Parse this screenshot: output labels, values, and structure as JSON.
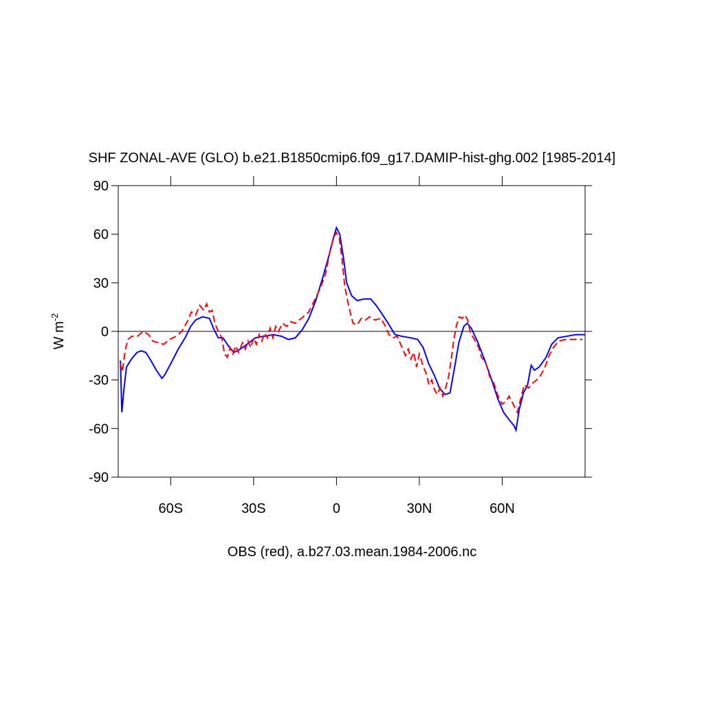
{
  "chart_data": {
    "type": "line",
    "title": "SHF ZONAL-AVE (GLO) b.e21.B1850cmip6.f09_g17.DAMIP-hist-ghg.002 [1985-2014]",
    "xlabel": "OBS (red), a.b27.03.mean.1984-2006.nc",
    "ylabel": "W m",
    "ylabel_sup": "-2",
    "xlim": [
      -79,
      90
    ],
    "ylim": [
      -90,
      90
    ],
    "xticks": [
      {
        "value": -60,
        "label": "60S"
      },
      {
        "value": -30,
        "label": "30S"
      },
      0,
      {
        "value": 30,
        "label": "30N"
      },
      {
        "value": 60,
        "label": "60N"
      }
    ],
    "yticks": [
      -90,
      -60,
      -30,
      0,
      30,
      60,
      90
    ],
    "reference_line": 0,
    "series": [
      {
        "color": "#0000ff",
        "style": "solid",
        "x": [
          -78.2,
          -77.7,
          -76.9,
          -76,
          -74.2,
          -72.2,
          -70.7,
          -69,
          -67.2,
          -65.2,
          -63.2,
          -62.2,
          -59.7,
          -57.3,
          -54.8,
          -52.8,
          -51,
          -48.5,
          -46,
          -44.3,
          -42.8,
          -41.1,
          -39.1,
          -37.1,
          -34.9,
          -32.4,
          -29.4,
          -26.1,
          -22.9,
          -19.9,
          -17.4,
          -14.9,
          -12.4,
          -10,
          -7.5,
          -5,
          -3,
          -1.2,
          0,
          1.2,
          2.5,
          3.7,
          5.5,
          7.5,
          10,
          12.4,
          14.4,
          16.4,
          18.7,
          21.2,
          23.6,
          26.9,
          29.4,
          31.4,
          33.4,
          35.4,
          37.3,
          39.3,
          41.1,
          42.8,
          44.3,
          46.1,
          47.3,
          48.8,
          51,
          53.5,
          56,
          58.5,
          60.5,
          62.7,
          64.2,
          65,
          66.2,
          67.7,
          69.2,
          70.5,
          71.7,
          73.4,
          75.9,
          77.9,
          80.2,
          83.4,
          86.6,
          89.9
        ],
        "values": [
          -18,
          -50,
          -35,
          -22,
          -17,
          -13,
          -12,
          -13,
          -18,
          -24,
          -29,
          -27,
          -19,
          -11,
          -4,
          3,
          7,
          9,
          8,
          1,
          -4,
          -4,
          -9,
          -13,
          -11,
          -8,
          -4,
          -3,
          -2,
          -3,
          -5,
          -4,
          1,
          8,
          19,
          33,
          45,
          57,
          64,
          60,
          46,
          30,
          22,
          19,
          20,
          20,
          16,
          11,
          5,
          -2,
          -3,
          -4,
          -5,
          -10,
          -20,
          -27,
          -35,
          -39,
          -38,
          -22,
          -7,
          3,
          5,
          2,
          -6,
          -17,
          -29,
          -42,
          -50,
          -55,
          -58,
          -61,
          -48,
          -38,
          -33,
          -21,
          -24,
          -22,
          -16,
          -8,
          -4,
          -3,
          -2,
          -2
        ]
      },
      {
        "color": "#ff0000",
        "style": "dashed",
        "x": [
          -78.2,
          -77.5,
          -76.5,
          -75.5,
          -74,
          -72,
          -70,
          -68,
          -66.5,
          -64.5,
          -62.5,
          -60.5,
          -58,
          -56,
          -54,
          -52.5,
          -51,
          -49.5,
          -48,
          -47,
          -46,
          -45,
          -44,
          -42.8,
          -41.5,
          -40.5,
          -39.5,
          -38.5,
          -37.5,
          -36.5,
          -35.5,
          -34,
          -33,
          -32,
          -31,
          -30,
          -29,
          -28,
          -27,
          -26,
          -25,
          -24,
          -23,
          -22,
          -21,
          -19.5,
          -18,
          -16.5,
          -15,
          -13.5,
          -12,
          -10,
          -8,
          -6,
          -4,
          -2.5,
          -1,
          0,
          1,
          2,
          3,
          4.5,
          6,
          7.5,
          9,
          10.5,
          12,
          14,
          16,
          17.5,
          19,
          20.5,
          22,
          23.5,
          25,
          26,
          27,
          28,
          29,
          30,
          31.5,
          32.5,
          33.5,
          34.5,
          35.5,
          36.5,
          37.5,
          38.5,
          39.5,
          40.5,
          41.5,
          42.5,
          43.5,
          44.5,
          45.5,
          46.5,
          47.5,
          48.5,
          50,
          51.5,
          52.5,
          54,
          55.5,
          57,
          58.5,
          60,
          61.5,
          62.5,
          64,
          65.5,
          66.5,
          68,
          69.5,
          71,
          72.5,
          74,
          75.5,
          77,
          78.5,
          80.5,
          83,
          86,
          89
        ],
        "values": [
          -20,
          -25,
          -12,
          -5,
          -3,
          -3,
          0,
          -2,
          -6,
          -7,
          -8,
          -5,
          -3,
          0,
          6,
          12,
          10,
          16,
          13,
          17,
          12,
          13,
          5,
          0,
          -4,
          -14,
          -16,
          -10,
          -14,
          -9,
          -13,
          -7,
          -11,
          -6,
          -10,
          -4,
          -8,
          -2,
          -6,
          -1,
          -4,
          2,
          -4,
          3,
          0,
          5,
          3,
          6,
          5,
          7,
          9,
          12,
          19,
          26,
          35,
          48,
          58,
          61,
          58,
          45,
          28,
          15,
          5,
          4,
          8,
          7,
          9,
          7,
          8,
          4,
          -2,
          -4,
          -3,
          -9,
          -15,
          -11,
          -17,
          -13,
          -22,
          -14,
          -22,
          -26,
          -33,
          -30,
          -36,
          -39,
          -35,
          -40,
          -35,
          -29,
          -18,
          -5,
          4,
          9,
          8,
          10,
          7,
          -1,
          -5,
          -10,
          -16,
          -19,
          -28,
          -32,
          -40,
          -45,
          -43,
          -40,
          -45,
          -50,
          -43,
          -33,
          -35,
          -32,
          -30,
          -27,
          -22,
          -15,
          -10,
          -6,
          -5,
          -5,
          -5
        ]
      }
    ]
  }
}
